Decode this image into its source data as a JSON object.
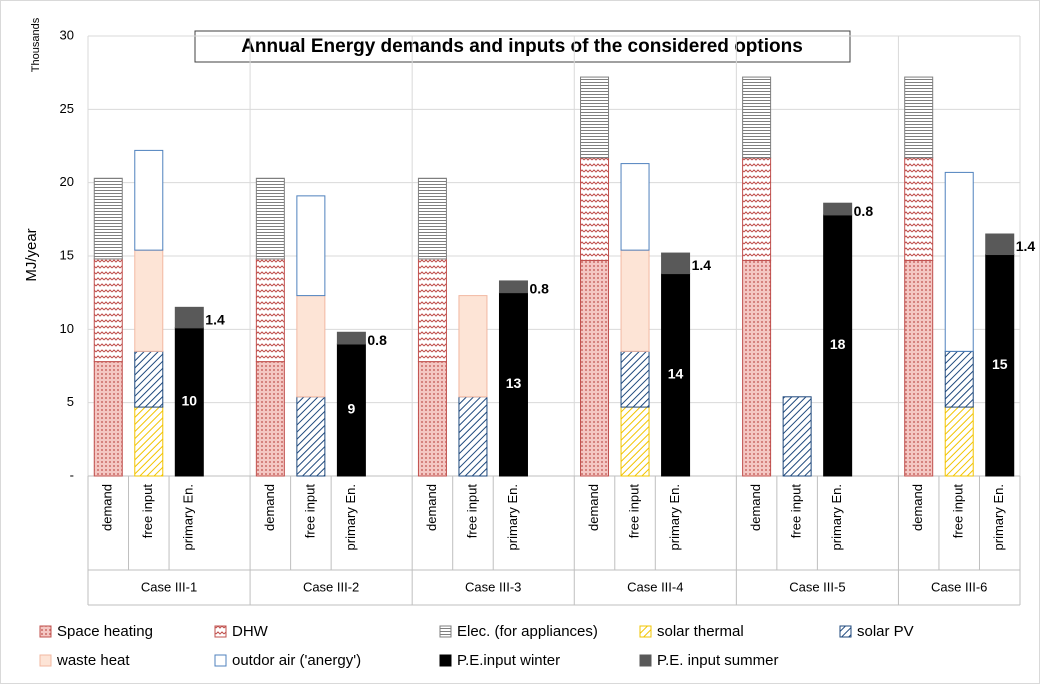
{
  "chart_data": {
    "type": "stacked-bar",
    "title": "Annual Energy demands and inputs of the considered options",
    "y_label": "MJ/year",
    "y_unit_label": "Thousands",
    "categories": [
      "demand",
      "free input",
      "primary En.",
      "demand",
      "free input",
      "primary En.",
      "demand",
      "free input",
      "primary En.",
      "demand",
      "free input",
      "primary En.",
      "demand",
      "free input",
      "primary En.",
      "demand",
      "free input",
      "primary En."
    ],
    "groups": [
      "Case III-1",
      "Case III-2",
      "Case III-3",
      "Case III-4",
      "Case III-5",
      "Case III-6"
    ],
    "ylim": [
      0,
      30
    ],
    "yticks": [
      {
        "value": 0,
        "label": "-"
      },
      5,
      10,
      15,
      20,
      25,
      30
    ],
    "grid": true,
    "legend": "bottom",
    "series": [
      {
        "name": "Space heating",
        "color": "#c0504d",
        "hatch": "dots",
        "values": [
          7.8,
          null,
          null,
          7.8,
          null,
          null,
          7.8,
          null,
          null,
          14.7,
          null,
          null,
          14.7,
          null,
          null,
          14.7,
          null,
          null
        ]
      },
      {
        "name": "DHW",
        "color": "#c0504d",
        "hatch": "zigzag",
        "values": [
          7.0,
          null,
          null,
          7.0,
          null,
          null,
          7.0,
          null,
          null,
          7.0,
          null,
          null,
          7.0,
          null,
          null,
          7.0,
          null,
          null
        ]
      },
      {
        "name": "Elec. (for appliances)",
        "color": "#7f7f7f",
        "hatch": "horizontal",
        "values": [
          5.5,
          null,
          null,
          5.5,
          null,
          null,
          5.5,
          null,
          null,
          5.5,
          null,
          null,
          5.5,
          null,
          null,
          5.5,
          null,
          null
        ]
      },
      {
        "name": "solar thermal",
        "color": "#f2c400",
        "hatch": "diagonal",
        "values": [
          null,
          4.7,
          null,
          null,
          null,
          null,
          null,
          null,
          null,
          null,
          4.7,
          null,
          null,
          null,
          null,
          null,
          4.7,
          null
        ]
      },
      {
        "name": "solar PV",
        "color": "#1f497d",
        "hatch": "diagonal",
        "values": [
          null,
          3.8,
          null,
          null,
          5.4,
          null,
          null,
          5.4,
          null,
          null,
          3.8,
          null,
          null,
          5.4,
          null,
          null,
          3.8,
          null
        ]
      },
      {
        "name": "waste heat",
        "color": "#fde4d6",
        "hatch": "solid",
        "values": [
          null,
          6.9,
          null,
          null,
          6.9,
          null,
          null,
          6.9,
          null,
          null,
          6.9,
          null,
          null,
          null,
          null,
          null,
          null,
          null
        ]
      },
      {
        "name": "outdor air ('anergy')",
        "color": "#4f81bd",
        "hatch": "outline",
        "values": [
          null,
          6.8,
          null,
          null,
          6.8,
          null,
          null,
          null,
          null,
          null,
          5.9,
          null,
          null,
          null,
          null,
          null,
          12.2,
          null
        ]
      },
      {
        "name": "P.E.input winter",
        "color": "#000000",
        "hatch": "solid",
        "values": [
          null,
          null,
          10.1,
          null,
          null,
          9,
          null,
          null,
          12.5,
          null,
          null,
          13.8,
          null,
          null,
          17.8,
          null,
          null,
          15.1
        ],
        "value_labels": [
          null,
          null,
          "10",
          null,
          null,
          "9",
          null,
          null,
          "13",
          null,
          null,
          "14",
          null,
          null,
          "18",
          null,
          null,
          "15"
        ]
      },
      {
        "name": "P.E. input summer",
        "color": "#595959",
        "hatch": "solid",
        "values": [
          null,
          null,
          1.4,
          null,
          null,
          0.8,
          null,
          null,
          0.8,
          null,
          null,
          1.4,
          null,
          null,
          0.8,
          null,
          null,
          1.4
        ]
      }
    ]
  }
}
